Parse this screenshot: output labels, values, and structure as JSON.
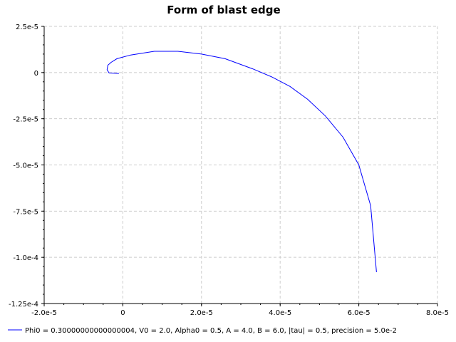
{
  "chart_data": {
    "type": "line",
    "title": "Form of blast edge",
    "xlabel": "",
    "ylabel": "",
    "xlim": [
      -2e-05,
      8e-05
    ],
    "ylim": [
      -0.000125,
      2.5e-05
    ],
    "x_ticks": [
      -2e-05,
      0,
      2e-05,
      4e-05,
      6e-05,
      8e-05
    ],
    "x_tick_labels": [
      "-2.0e-5",
      "0",
      "2.0e-5",
      "4.0e-5",
      "6.0e-5",
      "8.0e-5"
    ],
    "y_ticks": [
      2.5e-05,
      0,
      -2.5e-05,
      -5e-05,
      -7.5e-05,
      -0.0001,
      -0.000125
    ],
    "y_tick_labels": [
      "2.5e-5",
      "0",
      "-2.5e-5",
      "-5.0e-5",
      "-7.5e-5",
      "-1.0e-4",
      "-1.25e-4"
    ],
    "grid": true,
    "legend_position": "bottom",
    "series": [
      {
        "name": "Phi0 = 0.30000000000000004, V0 = 2.0, Alpha0 = 0.5, A = 4.0, B = 6.0, |tau| = 0.5, precision = 5.0e-2",
        "color": "#0000ff",
        "x": [
          -1e-06,
          -3.5e-06,
          -4e-06,
          -3.8e-06,
          -3e-06,
          -1.5e-06,
          2e-06,
          8e-06,
          1.4e-05,
          2e-05,
          2.6e-05,
          3.3e-05,
          3.8e-05,
          4.25e-05,
          4.7e-05,
          5.15e-05,
          5.6e-05,
          6e-05,
          6.3e-05,
          6.45e-05
        ],
        "y": [
          -5e-07,
          -2e-07,
          1.5e-06,
          4e-06,
          5.5e-06,
          7.5e-06,
          9.5e-06,
          1.15e-05,
          1.15e-05,
          1e-05,
          7.5e-06,
          2e-06,
          -2.5e-06,
          -7.5e-06,
          -1.45e-05,
          -2.35e-05,
          -3.5e-05,
          -5e-05,
          -7.2e-05,
          -0.000108
        ]
      }
    ]
  }
}
